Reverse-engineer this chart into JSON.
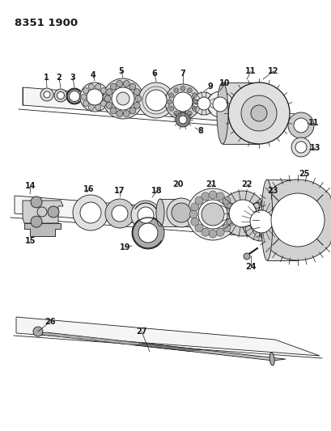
{
  "title": "8351 1900",
  "background_color": "#ffffff",
  "line_color": "#1a1a1a",
  "figure_width": 4.1,
  "figure_height": 5.33,
  "dpi": 100
}
